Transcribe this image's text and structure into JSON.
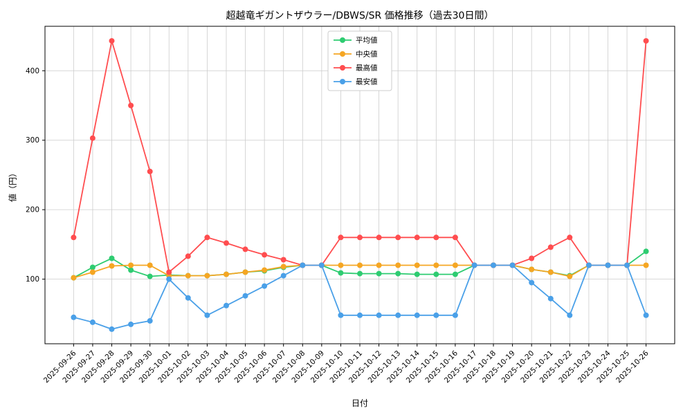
{
  "title": "超越竜ギガントザウラー/DBWS/SR 価格推移（過去30日間）",
  "chart_data": {
    "type": "line",
    "xlabel": "日付",
    "ylabel": "値（円）",
    "grid": true,
    "legend_position": "upper center",
    "yticks": [
      100,
      200,
      300,
      400
    ],
    "ylim": [
      7,
      464
    ],
    "colors": {
      "grid": "#cccccc",
      "axis": "#000000",
      "background": "#ffffff"
    },
    "x": [
      "2025-09-26",
      "2025-09-27",
      "2025-09-28",
      "2025-09-29",
      "2025-09-30",
      "2025-10-01",
      "2025-10-02",
      "2025-10-03",
      "2025-10-04",
      "2025-10-05",
      "2025-10-06",
      "2025-10-07",
      "2025-10-08",
      "2025-10-09",
      "2025-10-10",
      "2025-10-11",
      "2025-10-12",
      "2025-10-13",
      "2025-10-14",
      "2025-10-15",
      "2025-10-16",
      "2025-10-17",
      "2025-10-18",
      "2025-10-19",
      "2025-10-20",
      "2025-10-21",
      "2025-10-22",
      "2025-10-23",
      "2025-10-24",
      "2025-10-25",
      "2025-10-26"
    ],
    "series": [
      {
        "key": "average",
        "name": "平均値",
        "color": "#2ecc71",
        "values": [
          102,
          117,
          130,
          113,
          104,
          106,
          105,
          105,
          107,
          110,
          112,
          117,
          120,
          120,
          109,
          108,
          108,
          108,
          107,
          107,
          107,
          120,
          120,
          120,
          114,
          110,
          105,
          120,
          120,
          120,
          140
        ]
      },
      {
        "key": "median",
        "name": "中央値",
        "color": "#f5a623",
        "values": [
          102,
          110,
          119,
          120,
          120,
          105,
          105,
          105,
          107,
          110,
          113,
          118,
          120,
          120,
          120,
          120,
          120,
          120,
          120,
          120,
          120,
          120,
          120,
          120,
          114,
          110,
          104,
          120,
          120,
          120,
          120
        ]
      },
      {
        "key": "max",
        "name": "最高値",
        "color": "#ff4d4f",
        "values": [
          160,
          303,
          443,
          350,
          255,
          110,
          133,
          160,
          152,
          143,
          135,
          128,
          120,
          120,
          160,
          160,
          160,
          160,
          160,
          160,
          160,
          120,
          120,
          120,
          130,
          146,
          160,
          120,
          120,
          120,
          443
        ]
      },
      {
        "key": "min",
        "name": "最安値",
        "color": "#4aa0e8",
        "values": [
          45,
          38,
          28,
          35,
          40,
          100,
          73,
          48,
          62,
          76,
          90,
          105,
          120,
          120,
          48,
          48,
          48,
          48,
          48,
          48,
          48,
          120,
          120,
          120,
          95,
          72,
          48,
          120,
          120,
          120,
          48
        ]
      }
    ]
  }
}
